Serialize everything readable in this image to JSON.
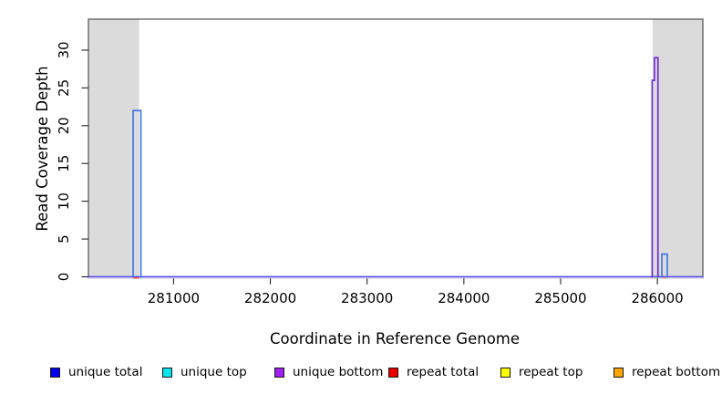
{
  "figure": {
    "kind": "read coverage depth plot"
  },
  "chart_data": {
    "type": "step-coverage-histogram",
    "title": "",
    "xlabel": "Coordinate in Reference Genome",
    "ylabel": "Read Coverage Depth",
    "xlim": [
      280120,
      286470
    ],
    "ylim": [
      0,
      34.1
    ],
    "xticks": [
      281000,
      282000,
      283000,
      284000,
      285000,
      286000
    ],
    "yticks": [
      0,
      5,
      10,
      15,
      20,
      25,
      30
    ],
    "grid": false,
    "masked_region_color": "#DBDBDB",
    "masked_regions": [
      {
        "x0": 280120,
        "x1": 280644
      },
      {
        "x0": 285951,
        "x1": 286470
      }
    ],
    "series": [
      {
        "name": "unique total",
        "color": "#4677E8",
        "segments": [
          {
            "x0": 280582,
            "x1": 280662,
            "y": 22
          },
          {
            "x0": 286046,
            "x1": 286102,
            "y": 3
          }
        ]
      },
      {
        "name": "unique top",
        "color": "#00E5EE",
        "segments": []
      },
      {
        "name": "unique bottom",
        "color": "#6F2DD4",
        "segments": [
          {
            "x0": 285946,
            "x1": 285970,
            "y": 26
          },
          {
            "x0": 285970,
            "x1": 286006,
            "y": 29
          }
        ]
      },
      {
        "name": "repeat total",
        "color": "#EE0000",
        "segments": []
      },
      {
        "name": "repeat top",
        "color": "#FFFF00",
        "segments": []
      },
      {
        "name": "repeat bottom",
        "color": "#FFA500",
        "segments": []
      }
    ],
    "baseline": {
      "top_color": "#5B51E4",
      "bottom_color": "#C8BAF3",
      "artifacts": [
        {
          "x0": 280582,
          "x1": 280640,
          "color": "#E84848"
        },
        {
          "x0": 285965,
          "x1": 286002,
          "color": "#8FCF8F"
        },
        {
          "x0": 286050,
          "x1": 286096,
          "color": "#F4907E"
        }
      ]
    }
  },
  "legend": {
    "items": [
      {
        "label": "unique total",
        "color": "#0000EE"
      },
      {
        "label": "unique top",
        "color": "#00E5EE"
      },
      {
        "label": "unique bottom",
        "color": "#A020F0"
      },
      {
        "label": "repeat total",
        "color": "#EE0000"
      },
      {
        "label": "repeat top",
        "color": "#FFFF00"
      },
      {
        "label": "repeat bottom",
        "color": "#FFA500"
      }
    ]
  }
}
